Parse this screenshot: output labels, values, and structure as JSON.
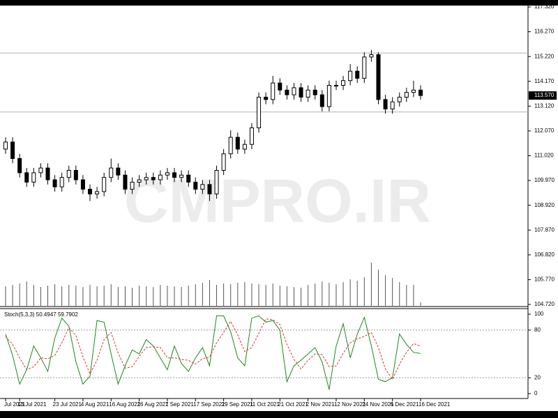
{
  "chart_data": {
    "type": "candlestick",
    "watermark": "CMPRO.IR",
    "categories": [
      "Jul 2021",
      null,
      "13 Jul 2021",
      null,
      null,
      null,
      null,
      "23 Jul 2021",
      null,
      null,
      null,
      "4 Aug 2021",
      null,
      null,
      null,
      "16 Aug 2021",
      null,
      null,
      null,
      "26 Aug 2021",
      null,
      null,
      null,
      "7 Sep 2021",
      null,
      null,
      null,
      "17 Sep 2021",
      null,
      null,
      null,
      "29 Sep 2021",
      null,
      null,
      null,
      "11 Oct 2021",
      null,
      null,
      null,
      "21 Oct 2021",
      null,
      null,
      null,
      "2 Nov 2021",
      null,
      null,
      null,
      "12 Nov 2021",
      null,
      null,
      null,
      "24 Nov 2021",
      null,
      null,
      null,
      "6 Dec 2021",
      null,
      null,
      null,
      "16 Dec 2021"
    ],
    "open": [
      111.3,
      111.6,
      110.9,
      110.3,
      109.9,
      110.3,
      110.5,
      110.0,
      109.7,
      110.1,
      110.4,
      110.0,
      109.6,
      109.4,
      109.5,
      110.1,
      110.5,
      110.2,
      109.6,
      109.9,
      110.0,
      110.1,
      110.0,
      110.2,
      110.3,
      110.1,
      110.2,
      109.9,
      109.6,
      109.8,
      109.4,
      110.4,
      111.1,
      111.8,
      111.3,
      111.5,
      112.2,
      113.5,
      113.4,
      114.1,
      113.8,
      113.6,
      113.9,
      113.5,
      113.8,
      113.6,
      113.1,
      114.0,
      114.0,
      114.2,
      114.6,
      114.3,
      115.2,
      115.3,
      113.4,
      113.0,
      113.3,
      113.5,
      113.7,
      113.8
    ],
    "high": [
      111.8,
      111.8,
      111.1,
      110.5,
      110.5,
      110.7,
      110.7,
      110.2,
      110.3,
      110.6,
      110.6,
      110.2,
      109.8,
      109.7,
      110.3,
      110.9,
      110.7,
      110.4,
      110.1,
      110.2,
      110.3,
      110.3,
      110.4,
      110.5,
      110.5,
      110.4,
      110.4,
      110.1,
      110.0,
      110.0,
      110.6,
      111.3,
      112.1,
      112.0,
      111.7,
      112.4,
      113.7,
      113.7,
      114.4,
      114.3,
      114.0,
      114.1,
      114.1,
      114.0,
      114.0,
      113.8,
      114.2,
      114.2,
      114.4,
      114.9,
      114.8,
      115.4,
      115.5,
      115.4,
      113.6,
      113.5,
      113.7,
      113.9,
      114.2,
      114.0
    ],
    "low": [
      111.1,
      110.7,
      110.1,
      109.7,
      109.7,
      110.1,
      109.8,
      109.5,
      109.5,
      109.9,
      109.8,
      109.4,
      109.1,
      109.2,
      109.3,
      109.9,
      110.0,
      109.4,
      109.4,
      109.7,
      109.8,
      109.8,
      109.8,
      110.0,
      109.9,
      109.9,
      109.7,
      109.4,
      109.4,
      109.1,
      109.2,
      110.2,
      110.9,
      111.1,
      111.1,
      111.3,
      112.0,
      113.2,
      113.2,
      113.6,
      113.4,
      113.4,
      113.3,
      113.3,
      113.4,
      112.9,
      112.9,
      113.8,
      113.8,
      114.0,
      114.1,
      114.1,
      115.0,
      113.2,
      112.8,
      112.8,
      113.1,
      113.3,
      113.5,
      113.4
    ],
    "close": [
      111.6,
      110.9,
      110.3,
      109.9,
      110.3,
      110.5,
      110.0,
      109.7,
      110.1,
      110.4,
      110.0,
      109.6,
      109.4,
      109.5,
      110.1,
      110.5,
      110.2,
      109.6,
      109.9,
      110.0,
      110.1,
      110.0,
      110.2,
      110.3,
      110.1,
      110.2,
      109.9,
      109.6,
      109.8,
      109.4,
      110.4,
      111.1,
      111.8,
      111.3,
      111.5,
      112.2,
      113.5,
      113.4,
      114.1,
      113.8,
      113.6,
      113.9,
      113.5,
      113.8,
      113.6,
      113.1,
      114.0,
      114.0,
      114.2,
      114.6,
      114.3,
      115.2,
      115.3,
      113.4,
      113.0,
      113.3,
      113.5,
      113.7,
      113.8,
      113.57
    ],
    "volume": [
      28,
      30,
      32,
      35,
      30,
      27,
      29,
      31,
      28,
      30,
      29,
      27,
      30,
      28,
      29,
      31,
      27,
      28,
      26,
      29,
      28,
      27,
      30,
      29,
      28,
      27,
      29,
      31,
      33,
      37,
      30,
      32,
      31,
      33,
      34,
      32,
      31,
      30,
      32,
      29,
      28,
      27,
      26,
      30,
      32,
      35,
      33,
      31,
      34,
      38,
      36,
      41,
      62,
      52,
      44,
      40,
      34,
      30,
      30,
      5
    ],
    "bull_color": "#ffffff",
    "bear_color": "#000000",
    "ylim": [
      104.72,
      117.32
    ],
    "yticks": [
      {
        "value": 117.32,
        "label": "117.320"
      },
      {
        "value": 116.27,
        "label": "116.270"
      },
      {
        "value": 115.22,
        "label": "115.220"
      },
      {
        "value": 114.17,
        "label": "114.170"
      },
      {
        "value": 113.12,
        "label": "113.120"
      },
      {
        "value": 112.07,
        "label": "112.070"
      },
      {
        "value": 111.02,
        "label": "111.020"
      },
      {
        "value": 109.97,
        "label": "109.970"
      },
      {
        "value": 108.92,
        "label": "108.920"
      },
      {
        "value": 107.87,
        "label": "107.870"
      },
      {
        "value": 106.82,
        "label": "106.820"
      },
      {
        "value": 105.77,
        "label": "105.770"
      },
      {
        "value": 104.72,
        "label": "104.720"
      }
    ],
    "hlines": [
      115.37,
      112.87
    ],
    "last_price": {
      "value": 113.57,
      "label": "113.570"
    },
    "stochastic": {
      "type": "line",
      "title": "Stoch(5,3,3) 50.4947 59.7902",
      "ylim": [
        0,
        100
      ],
      "yticks": [
        100,
        80,
        20,
        0
      ],
      "levels": [
        80,
        20
      ],
      "series": [
        {
          "name": "%K",
          "color": "#1a8a1a",
          "dashed": false,
          "values": [
            75,
            48,
            12,
            30,
            60,
            45,
            28,
            70,
            95,
            85,
            40,
            12,
            22,
            92,
            90,
            50,
            12,
            35,
            55,
            50,
            68,
            60,
            45,
            30,
            60,
            38,
            28,
            45,
            58,
            35,
            98,
            98,
            78,
            45,
            35,
            95,
            98,
            90,
            92,
            80,
            15,
            35,
            42,
            50,
            58,
            40,
            5,
            60,
            88,
            45,
            75,
            96,
            60,
            18,
            15,
            20,
            75,
            62,
            52,
            50.4947
          ]
        },
        {
          "name": "%D",
          "color": "#e03030",
          "dashed": true,
          "values": [
            72,
            62,
            45,
            30,
            34,
            45,
            44,
            48,
            64,
            83,
            73,
            46,
            25,
            42,
            68,
            77,
            51,
            32,
            34,
            47,
            58,
            59,
            58,
            45,
            45,
            43,
            42,
            37,
            44,
            46,
            64,
            77,
            91,
            74,
            53,
            58,
            76,
            94,
            93,
            87,
            62,
            43,
            31,
            42,
            50,
            49,
            34,
            35,
            51,
            64,
            69,
            72,
            77,
            58,
            31,
            18,
            37,
            52,
            63,
            59.7902
          ]
        }
      ]
    }
  }
}
